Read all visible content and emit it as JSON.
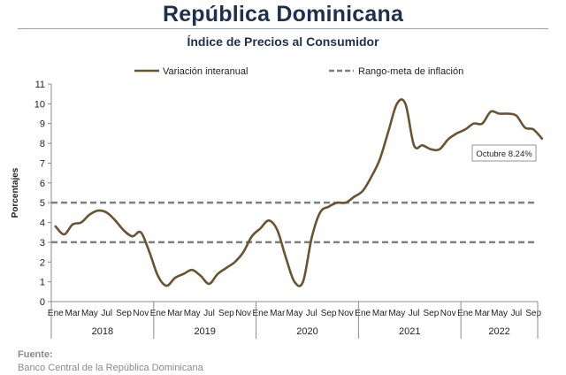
{
  "header": {
    "title": "República Dominicana",
    "subtitle": "Índice de Precios al Consumidor"
  },
  "footer": {
    "source_label": "Fuente:",
    "source_text": "Banco Central de la República Dominicana"
  },
  "colors": {
    "series": "#6b5330",
    "target": "#7f7f7f",
    "title": "#1f2f4f"
  },
  "chart_data": {
    "type": "line",
    "title": "Índice de Precios al Consumidor",
    "ylabel": "Porcentajes",
    "ylim": [
      0,
      11
    ],
    "yticks": [
      0,
      1,
      2,
      3,
      4,
      5,
      6,
      7,
      8,
      9,
      10,
      11
    ],
    "grid": false,
    "legend_position": "top",
    "month_ticks": [
      "Ene",
      "Mar",
      "May",
      "Jul",
      "Sep",
      "Nov"
    ],
    "month_ticks_last_year": [
      "Ene",
      "Mar",
      "May",
      "Jul",
      "Sep"
    ],
    "years": [
      "2018",
      "2019",
      "2020",
      "2021",
      "2022"
    ],
    "series": [
      {
        "name": "Variación interanual",
        "type": "line",
        "values": [
          3.8,
          3.4,
          3.9,
          4.0,
          4.4,
          4.6,
          4.5,
          4.1,
          3.6,
          3.3,
          3.5,
          2.5,
          1.3,
          0.8,
          1.2,
          1.4,
          1.6,
          1.3,
          0.9,
          1.4,
          1.7,
          2.0,
          2.5,
          3.3,
          3.7,
          4.1,
          3.6,
          2.2,
          1.0,
          1.0,
          3.2,
          4.5,
          4.8,
          5.0,
          5.0,
          5.3,
          5.6,
          6.3,
          7.2,
          8.6,
          10.0,
          10.0,
          7.9,
          7.9,
          7.7,
          7.7,
          8.2,
          8.5,
          8.7,
          9.0,
          9.0,
          9.6,
          9.5,
          9.5,
          9.4,
          8.8,
          8.7,
          8.24
        ]
      },
      {
        "name": "Rango-meta de inflación",
        "type": "band",
        "lower": 3,
        "upper": 5
      }
    ],
    "annotation": {
      "text": "Octubre 8.24%"
    }
  }
}
